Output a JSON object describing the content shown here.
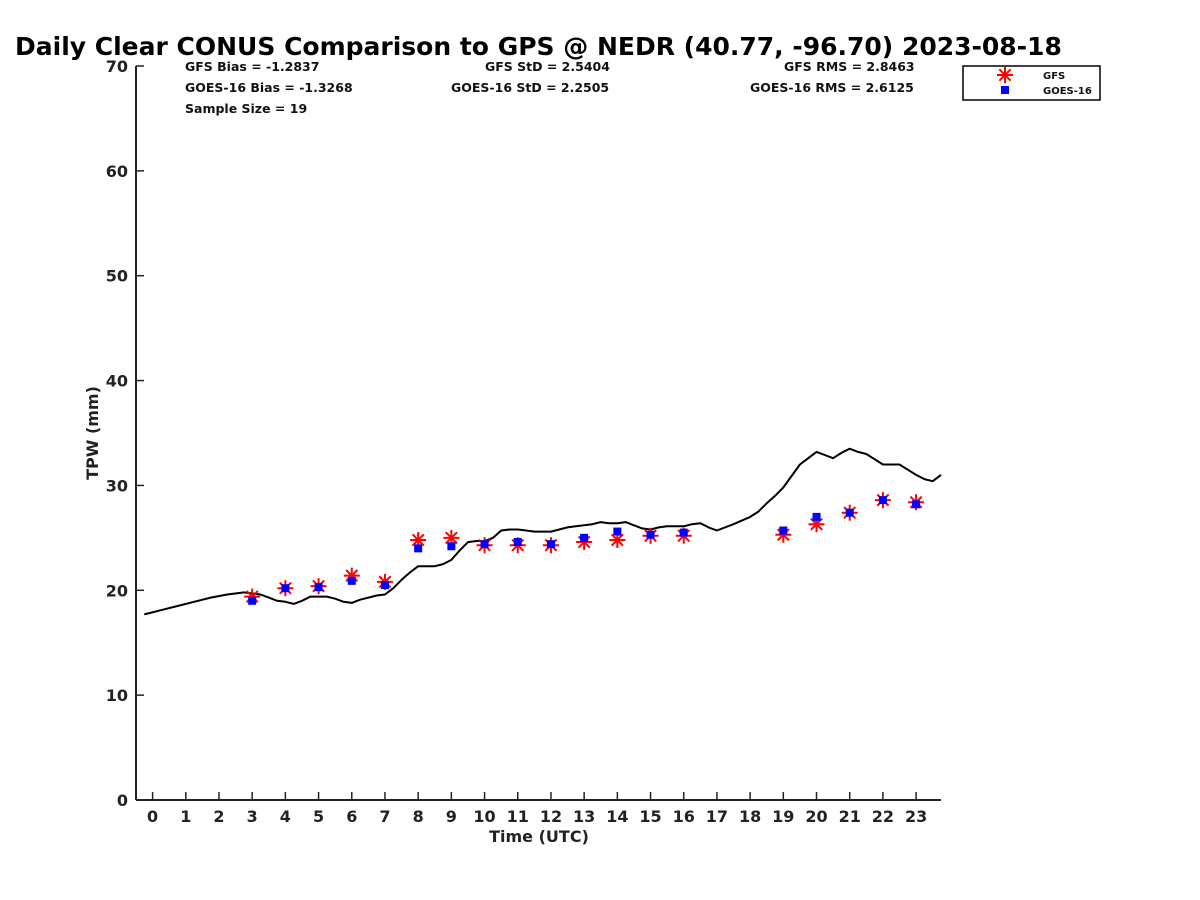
{
  "chart_data": {
    "type": "scatter",
    "title": "Daily Clear CONUS Comparison to GPS @ NEDR (40.77, -96.70) 2023-08-18",
    "xlabel": "Time (UTC)",
    "ylabel": "TPW (mm)",
    "xlim": [
      -0.5,
      23.75
    ],
    "ylim": [
      0,
      70
    ],
    "x_ticks": [
      "0",
      "1",
      "2",
      "3",
      "4",
      "5",
      "6",
      "7",
      "8",
      "9",
      "10",
      "11",
      "12",
      "13",
      "14",
      "15",
      "16",
      "17",
      "18",
      "19",
      "20",
      "21",
      "22",
      "23"
    ],
    "y_ticks": [
      "0",
      "10",
      "20",
      "30",
      "40",
      "50",
      "60",
      "70"
    ],
    "grid": false,
    "legend_position": "top-right",
    "stats": {
      "gfs_bias": "GFS Bias = -1.2837",
      "goes_bias": "GOES-16 Bias = -1.3268",
      "sample_size": "Sample Size = 19",
      "gfs_std": "GFS StD = 2.5404",
      "goes_std": "GOES-16 StD = 2.2505",
      "gfs_rms": "GFS RMS = 2.8463",
      "goes_rms": "GOES-16 RMS = 2.6125"
    },
    "series": [
      {
        "name": "GFS",
        "marker": "star",
        "color": "#ff0000",
        "x": [
          3,
          4,
          5,
          6,
          7,
          8,
          9,
          10,
          11,
          12,
          13,
          14,
          15,
          16,
          19,
          20,
          21,
          22,
          23
        ],
        "y": [
          19.4,
          20.2,
          20.4,
          21.4,
          20.8,
          24.8,
          25.0,
          24.3,
          24.3,
          24.3,
          24.6,
          24.8,
          25.2,
          25.2,
          25.3,
          26.3,
          27.4,
          28.6,
          28.4
        ]
      },
      {
        "name": "GOES-16",
        "marker": "square",
        "color": "#0000ff",
        "x": [
          3,
          4,
          5,
          6,
          7,
          8,
          9,
          10,
          11,
          12,
          13,
          14,
          15,
          16,
          19,
          20,
          21,
          22,
          23
        ],
        "y": [
          19.0,
          20.2,
          20.3,
          20.9,
          20.5,
          24.0,
          24.2,
          24.4,
          24.6,
          24.4,
          25.0,
          25.6,
          25.3,
          25.5,
          25.7,
          27.0,
          27.4,
          28.6,
          28.2
        ]
      },
      {
        "marker": "line",
        "color": "#000000",
        "x": [
          -0.25,
          0.25,
          0.75,
          1.25,
          1.75,
          2.25,
          2.75,
          3.25,
          3.5,
          3.75,
          4.0,
          4.25,
          4.5,
          4.75,
          5.0,
          5.25,
          5.5,
          5.75,
          6.0,
          6.25,
          6.5,
          6.75,
          7.0,
          7.25,
          7.5,
          7.75,
          8.0,
          8.25,
          8.5,
          8.75,
          9.0,
          9.25,
          9.5,
          9.75,
          10.0,
          10.25,
          10.5,
          10.75,
          11.0,
          11.25,
          11.5,
          11.75,
          12.0,
          12.25,
          12.5,
          12.75,
          13.0,
          13.25,
          13.5,
          13.75,
          14.0,
          14.25,
          14.5,
          14.75,
          15.0,
          15.25,
          15.5,
          15.75,
          16.0,
          16.25,
          16.5,
          16.75,
          17.0,
          17.5,
          18.0,
          18.25,
          18.5,
          18.75,
          19.0,
          19.25,
          19.5,
          19.75,
          20.0,
          20.25,
          20.5,
          20.75,
          21.0,
          21.25,
          21.5,
          21.75,
          22.0,
          22.25,
          22.5,
          22.75,
          23.0,
          23.25,
          23.5,
          23.75
        ],
        "y": [
          17.7,
          18.1,
          18.5,
          18.9,
          19.3,
          19.6,
          19.8,
          19.6,
          19.3,
          19.0,
          18.9,
          18.7,
          19.0,
          19.4,
          19.4,
          19.4,
          19.2,
          18.9,
          18.8,
          19.1,
          19.3,
          19.5,
          19.6,
          20.2,
          21.0,
          21.7,
          22.3,
          22.3,
          22.3,
          22.5,
          22.9,
          23.8,
          24.6,
          24.7,
          24.7,
          25.0,
          25.7,
          25.8,
          25.8,
          25.7,
          25.6,
          25.6,
          25.6,
          25.8,
          26.0,
          26.1,
          26.2,
          26.3,
          26.5,
          26.4,
          26.4,
          26.5,
          26.2,
          25.9,
          25.8,
          26.0,
          26.1,
          26.1,
          26.1,
          26.3,
          26.4,
          26.0,
          25.7,
          26.3,
          27.0,
          27.5,
          28.3,
          29.0,
          29.8,
          30.9,
          32.0,
          32.6,
          33.2,
          32.9,
          32.6,
          33.1,
          33.5,
          33.2,
          33.0,
          32.5,
          32.0,
          32.0,
          32.0,
          31.5,
          31.0,
          30.6,
          30.4,
          31.0
        ]
      }
    ]
  }
}
